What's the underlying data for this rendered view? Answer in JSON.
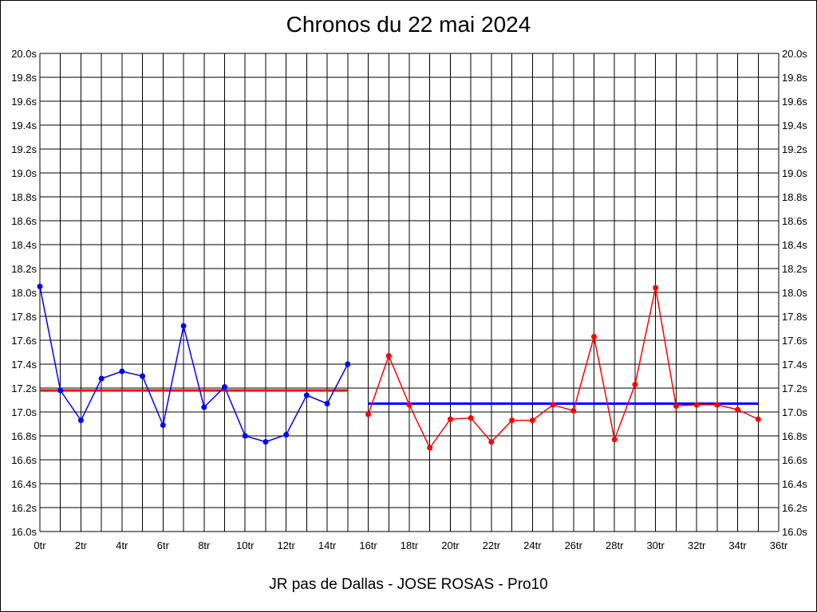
{
  "chart_data": {
    "type": "line",
    "title": "Chronos du 22 mai 2024",
    "footer": "JR pas de Dallas - JOSE ROSAS - Pro10",
    "xlim": [
      0,
      36
    ],
    "ylim": [
      16.0,
      20.0
    ],
    "x_ticks": [
      "0tr",
      "2tr",
      "4tr",
      "6tr",
      "8tr",
      "10tr",
      "12tr",
      "14tr",
      "16tr",
      "18tr",
      "20tr",
      "22tr",
      "24tr",
      "26tr",
      "28tr",
      "30tr",
      "32tr",
      "34tr",
      "36tr"
    ],
    "y_ticks": [
      "16.0s",
      "16.2s",
      "16.4s",
      "16.6s",
      "16.8s",
      "17.0s",
      "17.2s",
      "17.4s",
      "17.6s",
      "17.8s",
      "18.0s",
      "18.2s",
      "18.4s",
      "18.6s",
      "18.8s",
      "19.0s",
      "19.2s",
      "19.4s",
      "19.6s",
      "19.8s",
      "20.0s"
    ],
    "grid": true,
    "series": [
      {
        "color": "#0000ff",
        "x": [
          0,
          1,
          2,
          3,
          4,
          5,
          6,
          7,
          8,
          9,
          10,
          11,
          12,
          13,
          14,
          15
        ],
        "y": [
          18.05,
          17.18,
          16.93,
          17.28,
          17.34,
          17.3,
          16.89,
          17.72,
          17.04,
          17.21,
          16.8,
          16.75,
          16.81,
          17.14,
          17.07,
          17.4
        ]
      },
      {
        "color": "#ff0000",
        "x": [
          16,
          17,
          18,
          19,
          20,
          21,
          22,
          23,
          24,
          25,
          26,
          27,
          28,
          29,
          30,
          31,
          32,
          33,
          34,
          35
        ],
        "y": [
          16.98,
          17.47,
          17.06,
          16.7,
          16.94,
          16.95,
          16.75,
          16.93,
          16.93,
          17.06,
          17.01,
          17.63,
          16.77,
          17.23,
          18.04,
          17.05,
          17.06,
          17.06,
          17.02,
          16.94
        ]
      }
    ],
    "averages": [
      {
        "color": "#ff0000",
        "x": [
          0,
          15
        ],
        "y": 17.18
      },
      {
        "color": "#0000ff",
        "x": [
          16,
          35
        ],
        "y": 17.07
      }
    ]
  }
}
